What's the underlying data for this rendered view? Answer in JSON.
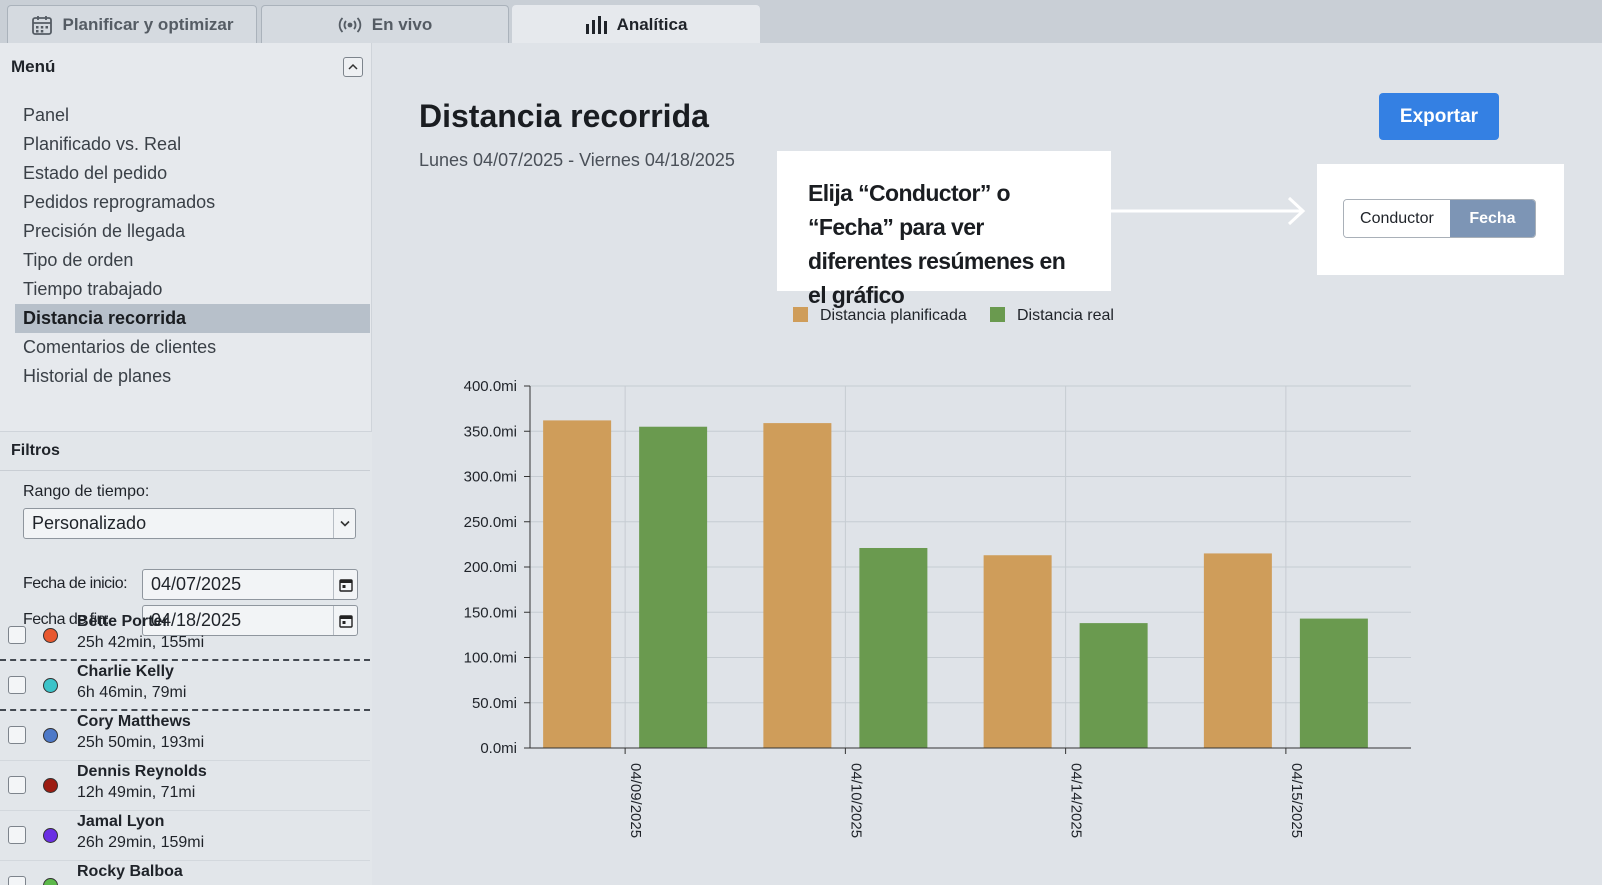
{
  "tabs": [
    {
      "label": "Planificar y optimizar",
      "icon": "calendar-icon"
    },
    {
      "label": "En vivo",
      "icon": "broadcast-icon"
    },
    {
      "label": "Analítica",
      "icon": "bar-chart-icon"
    }
  ],
  "sidebar": {
    "menu_title": "Menú",
    "items": [
      "Panel",
      "Planificado vs. Real",
      "Estado del pedido",
      "Pedidos reprogramados",
      "Precisión de llegada",
      "Tipo de orden",
      "Tiempo trabajado",
      "Distancia recorrida",
      "Comentarios de clientes",
      "Historial de planes"
    ],
    "active_item": "Distancia recorrida"
  },
  "filters": {
    "title": "Filtros",
    "range_label": "Rango de tiempo:",
    "range_value": "Personalizado",
    "start_label": "Fecha de inicio:",
    "start_value": "04/07/2025",
    "end_label": "Fecha de fin:",
    "end_value": "04/18/2025"
  },
  "drivers": [
    {
      "name": "Bette Porter",
      "meta": "25h 42min, 155mi",
      "color": "#e8582f"
    },
    {
      "name": "Charlie Kelly",
      "meta": "6h 46min, 79mi",
      "color": "#3cc3c9"
    },
    {
      "name": "Cory Matthews",
      "meta": "25h 50min, 193mi",
      "color": "#4d79c8"
    },
    {
      "name": "Dennis Reynolds",
      "meta": "12h 49min, 71mi",
      "color": "#9c1c12"
    },
    {
      "name": "Jamal Lyon",
      "meta": "26h 29min, 159mi",
      "color": "#6a2fe3"
    },
    {
      "name": "Rocky Balboa",
      "meta": "",
      "color": "#5cb84a"
    }
  ],
  "header": {
    "title": "Distancia recorrida",
    "date_range": "Lunes 04/07/2025 - Viernes 04/18/2025",
    "export_label": "Exportar"
  },
  "callout": {
    "text": "Elija “Conductor” o “Fecha” para ver diferentes resúmenes en el gráfico"
  },
  "toggle": {
    "options": [
      "Conductor",
      "Fecha"
    ],
    "selected": "Fecha"
  },
  "chart_data": {
    "type": "bar",
    "categories": [
      "04/09/2025",
      "04/10/2025",
      "04/14/2025",
      "04/15/2025"
    ],
    "series": [
      {
        "name": "Distancia planificada",
        "color": "#cf9d5a",
        "values": [
          362,
          359,
          213,
          215
        ]
      },
      {
        "name": "Distancia real",
        "color": "#6a9a4f",
        "values": [
          355,
          221,
          138,
          143
        ]
      }
    ],
    "ylim": [
      0,
      400
    ],
    "yticks": [
      0,
      50,
      100,
      150,
      200,
      250,
      300,
      350,
      400
    ],
    "ytick_labels": [
      "0.0mi",
      "50.0mi",
      "100.0mi",
      "150.0mi",
      "200.0mi",
      "250.0mi",
      "300.0mi",
      "350.0mi",
      "400.0mi"
    ],
    "legend_position": "top",
    "grid": true
  }
}
